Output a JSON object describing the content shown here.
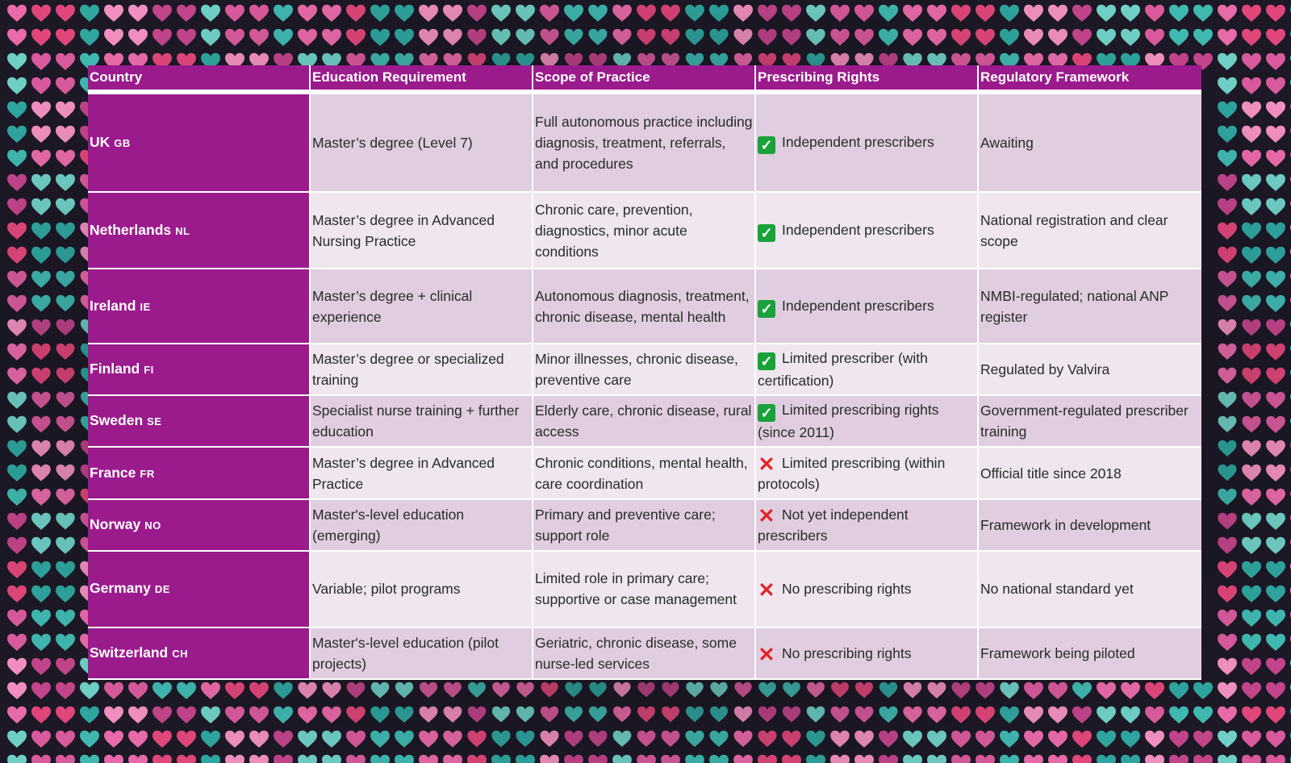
{
  "colors": {
    "header_bg": "#9b1b8d",
    "row_odd": "#e0cde0",
    "row_even": "#efe6ef",
    "check": "#19a23a",
    "cross": "#e02424"
  },
  "table": {
    "headers": [
      "Country",
      "Education Requirement",
      "Scope of Practice",
      "Prescribing Rights",
      "Regulatory Framework"
    ],
    "rows": [
      {
        "country": "UK",
        "code": "GB",
        "education": "Master’s degree (Level 7)",
        "scope": "Full autonomous practice including diagnosis, treatment, referrals, and procedures",
        "prescribing_icon": "check-icon",
        "prescribing": "Independent prescribers",
        "regulatory": "Awaiting"
      },
      {
        "country": "Netherlands",
        "code": "NL",
        "education": "Master’s degree in Advanced Nursing Practice",
        "scope": "Chronic care, prevention, diagnostics, minor acute conditions",
        "prescribing_icon": "check-icon",
        "prescribing": "Independent prescribers",
        "regulatory": "National registration and clear scope"
      },
      {
        "country": "Ireland",
        "code": "IE",
        "education": "Master’s degree + clinical experience",
        "scope": "Autonomous diagnosis, treatment, chronic disease, mental health",
        "prescribing_icon": "check-icon",
        "prescribing": "Independent prescribers",
        "regulatory": "NMBI-regulated; national ANP register"
      },
      {
        "country": "Finland",
        "code": "FI",
        "education": "Master’s degree or specialized training",
        "scope": "Minor illnesses, chronic disease, preventive care",
        "prescribing_icon": "check-icon",
        "prescribing": "Limited prescriber (with certification)",
        "regulatory": "Regulated by Valvira"
      },
      {
        "country": "Sweden",
        "code": "SE",
        "education": "Specialist nurse training + further education",
        "scope": "Elderly care, chronic disease, rural access",
        "prescribing_icon": "check-icon",
        "prescribing": "Limited prescribing rights (since 2011)",
        "regulatory": "Government-regulated prescriber training"
      },
      {
        "country": "France",
        "code": "FR",
        "education": "Master’s degree in Advanced Practice",
        "scope": "Chronic conditions, mental health, care coordination",
        "prescribing_icon": "cross-icon",
        "prescribing": "Limited prescribing (within protocols)",
        "regulatory": "Official title since 2018"
      },
      {
        "country": "Norway",
        "code": "NO",
        "education": "Master's-level education (emerging)",
        "scope": "Primary and preventive care; support role",
        "prescribing_icon": "cross-icon",
        "prescribing": "Not yet independent prescribers",
        "regulatory": "Framework in development"
      },
      {
        "country": "Germany",
        "code": "DE",
        "education": "Variable; pilot programs",
        "scope": "Limited role in primary care; supportive or case management",
        "prescribing_icon": "cross-icon",
        "prescribing": "No prescribing rights",
        "regulatory": "No national standard yet"
      },
      {
        "country": "Switzerland",
        "code": "CH",
        "education": "Master's-level education (pilot projects)",
        "scope": "Geriatric, chronic disease, some nurse-led services",
        "prescribing_icon": "cross-icon",
        "prescribing": "No prescribing rights",
        "regulatory": "Framework being piloted"
      }
    ]
  }
}
